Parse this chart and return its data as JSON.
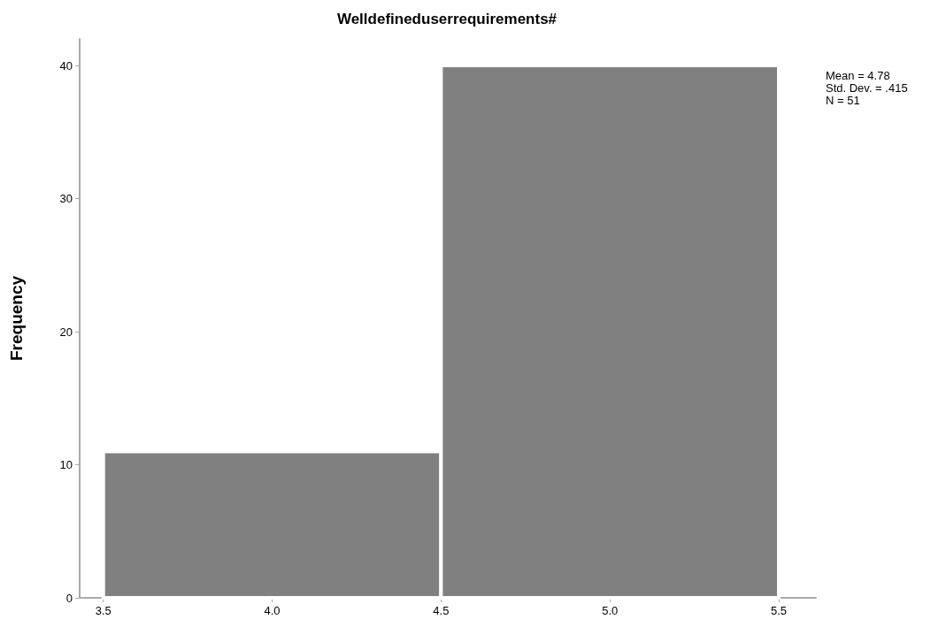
{
  "chart_data": {
    "type": "histogram",
    "title": "Welldefineduserrequirements#",
    "ylabel": "Frequency",
    "bins": [
      3.5,
      4.5,
      5.5
    ],
    "values": [
      11,
      40
    ],
    "color": "#808080",
    "xlim": [
      3.43,
      5.61
    ],
    "xticks": [
      {
        "value": 3.5,
        "label": "3.5"
      },
      {
        "value": 4,
        "label": "4.0"
      },
      {
        "value": 4.5,
        "label": "4.5"
      },
      {
        "value": 5,
        "label": "5.0"
      },
      {
        "value": 5.5,
        "label": "5.5"
      }
    ],
    "ylim": [
      0,
      42
    ],
    "yticks": [
      0,
      10,
      20,
      30,
      40
    ],
    "grid": false,
    "annotations": [
      "Mean = 4.78",
      "Std. Dev. = .415",
      "N = 51"
    ]
  }
}
